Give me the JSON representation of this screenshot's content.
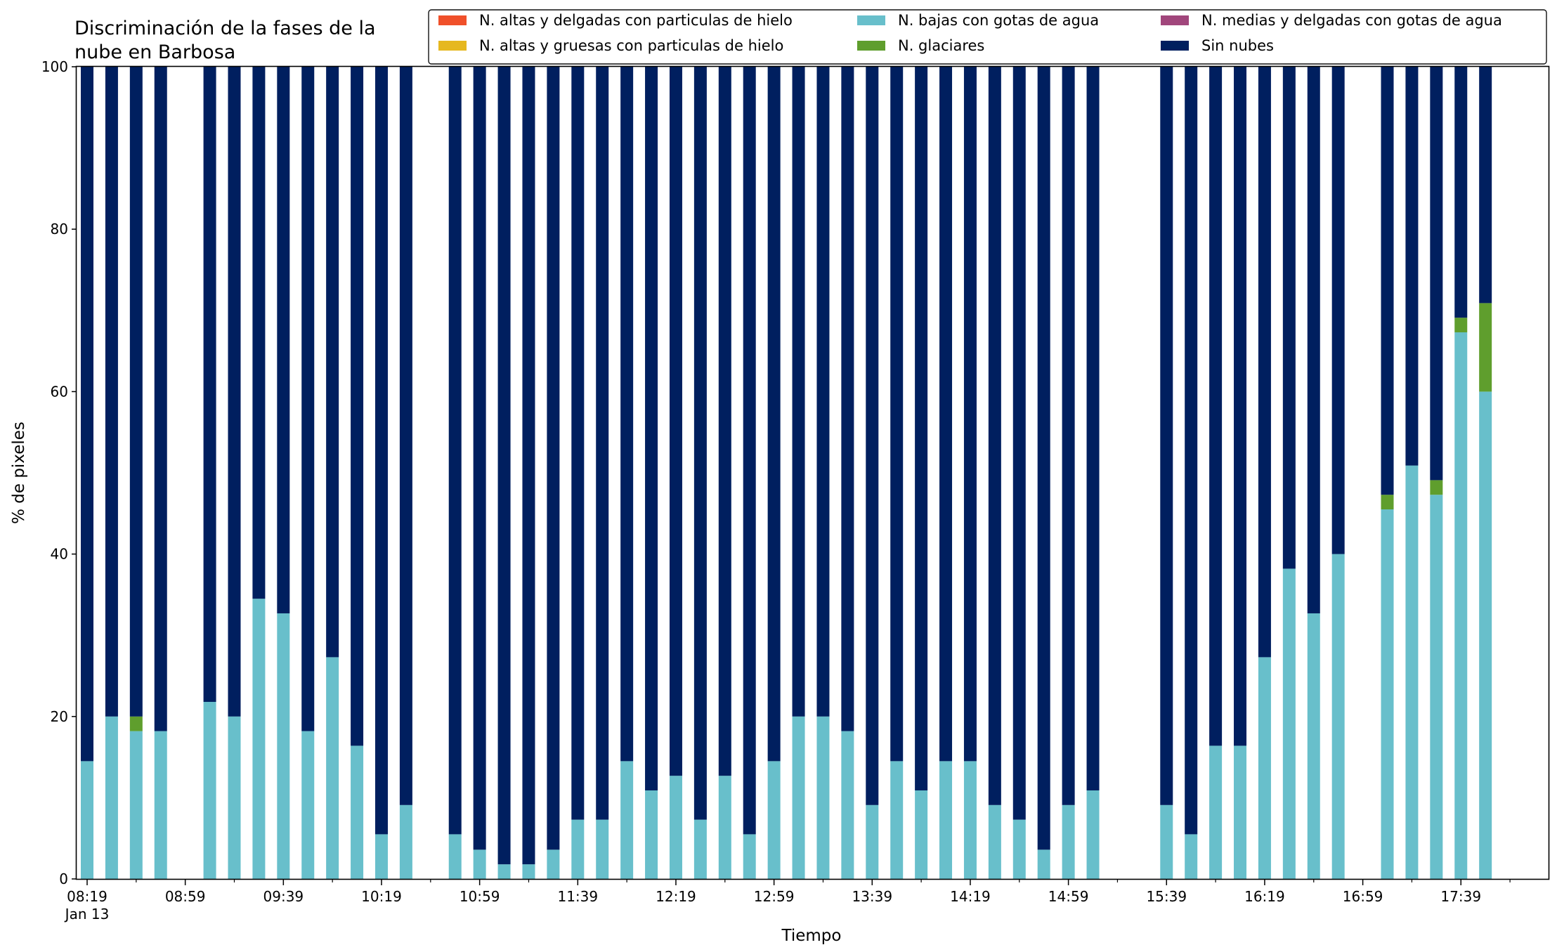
{
  "chart_data": {
    "type": "bar",
    "stacked": true,
    "title_lines": [
      "Discriminación de la fases de la",
      "nube en Barbosa"
    ],
    "xlabel": "Tiempo",
    "ylabel": "% de pixeles",
    "ylim": [
      0,
      100
    ],
    "yticks": [
      "0",
      "20",
      "40",
      "60",
      "80",
      "100"
    ],
    "grid": false,
    "legend_position": "top-right",
    "x_time_range": [
      "08:19",
      "18:09"
    ],
    "interval_minutes": 10,
    "major_ticks": [
      {
        "time": "08:19",
        "label": "08:19",
        "sublabel": "Jan 13"
      },
      {
        "time": "08:59",
        "label": "08:59"
      },
      {
        "time": "09:39",
        "label": "09:39"
      },
      {
        "time": "10:19",
        "label": "10:19"
      },
      {
        "time": "10:59",
        "label": "10:59"
      },
      {
        "time": "11:39",
        "label": "11:39"
      },
      {
        "time": "12:19",
        "label": "12:19"
      },
      {
        "time": "12:59",
        "label": "12:59"
      },
      {
        "time": "13:39",
        "label": "13:39"
      },
      {
        "time": "14:19",
        "label": "14:19"
      },
      {
        "time": "14:59",
        "label": "14:59"
      },
      {
        "time": "15:39",
        "label": "15:39"
      },
      {
        "time": "16:19",
        "label": "16:19"
      },
      {
        "time": "16:59",
        "label": "16:59"
      },
      {
        "time": "17:39",
        "label": "17:39"
      }
    ],
    "legend_layout": [
      [
        "N. altas y delgadas con particulas de hielo",
        "N. altas y gruesas con particulas de hielo"
      ],
      [
        "N. bajas con gotas de agua",
        "N. glaciares"
      ],
      [
        "N. medias y delgadas con gotas de agua",
        "Sin nubes"
      ]
    ],
    "series": [
      {
        "name": "N. altas y delgadas con particulas de hielo",
        "color": "#f0502a",
        "values": []
      },
      {
        "name": "N. altas y gruesas con particulas de hielo",
        "color": "#e6b81f",
        "values": []
      },
      {
        "name": "N. bajas con gotas de agua",
        "color": "#68bfcb",
        "values": []
      },
      {
        "name": "N. glaciares",
        "color": "#5f9e2d",
        "values": []
      },
      {
        "name": "N. medias y delgadas con gotas de agua",
        "color": "#a1467c",
        "values": []
      },
      {
        "name": "Sin nubes",
        "color": "#001f5f",
        "values": []
      }
    ],
    "stack_order": [
      "N. bajas con gotas de agua",
      "N. glaciares",
      "N. altas y delgadas con particulas de hielo",
      "N. altas y gruesas con particulas de hielo",
      "N. medias y delgadas con gotas de agua",
      "Sin nubes"
    ],
    "bars": [
      {
        "time": "08:19",
        "N. bajas con gotas de agua": 14.5,
        "N. glaciares": 0,
        "Sin nubes": 85.5
      },
      {
        "time": "08:29",
        "N. bajas con gotas de agua": 20.0,
        "N. glaciares": 0,
        "Sin nubes": 80.0
      },
      {
        "time": "08:39",
        "N. bajas con gotas de agua": 18.2,
        "N. glaciares": 1.8,
        "Sin nubes": 80.0
      },
      {
        "time": "08:49",
        "N. bajas con gotas de agua": 18.2,
        "N. glaciares": 0,
        "Sin nubes": 81.8
      },
      {
        "time": "09:09",
        "N. bajas con gotas de agua": 21.8,
        "N. glaciares": 0,
        "Sin nubes": 78.2
      },
      {
        "time": "09:19",
        "N. bajas con gotas de agua": 20.0,
        "N. glaciares": 0,
        "Sin nubes": 80.0
      },
      {
        "time": "09:29",
        "N. bajas con gotas de agua": 34.5,
        "N. glaciares": 0,
        "Sin nubes": 65.5
      },
      {
        "time": "09:39",
        "N. bajas con gotas de agua": 32.7,
        "N. glaciares": 0,
        "Sin nubes": 67.3
      },
      {
        "time": "09:49",
        "N. bajas con gotas de agua": 18.2,
        "N. glaciares": 0,
        "Sin nubes": 81.8
      },
      {
        "time": "09:59",
        "N. bajas con gotas de agua": 27.3,
        "N. glaciares": 0,
        "Sin nubes": 72.7
      },
      {
        "time": "10:09",
        "N. bajas con gotas de agua": 16.4,
        "N. glaciares": 0,
        "Sin nubes": 83.6
      },
      {
        "time": "10:19",
        "N. bajas con gotas de agua": 5.5,
        "N. glaciares": 0,
        "Sin nubes": 94.5
      },
      {
        "time": "10:29",
        "N. bajas con gotas de agua": 9.1,
        "N. glaciares": 0,
        "Sin nubes": 90.9
      },
      {
        "time": "10:49",
        "N. bajas con gotas de agua": 5.5,
        "N. glaciares": 0,
        "Sin nubes": 94.5
      },
      {
        "time": "10:59",
        "N. bajas con gotas de agua": 3.6,
        "N. glaciares": 0,
        "Sin nubes": 96.4
      },
      {
        "time": "11:09",
        "N. bajas con gotas de agua": 1.8,
        "N. glaciares": 0,
        "Sin nubes": 98.2
      },
      {
        "time": "11:19",
        "N. bajas con gotas de agua": 1.8,
        "N. glaciares": 0,
        "Sin nubes": 98.2
      },
      {
        "time": "11:29",
        "N. bajas con gotas de agua": 3.6,
        "N. glaciares": 0,
        "Sin nubes": 96.4
      },
      {
        "time": "11:39",
        "N. bajas con gotas de agua": 7.3,
        "N. glaciares": 0,
        "Sin nubes": 92.7
      },
      {
        "time": "11:49",
        "N. bajas con gotas de agua": 7.3,
        "N. glaciares": 0,
        "Sin nubes": 92.7
      },
      {
        "time": "11:59",
        "N. bajas con gotas de agua": 14.5,
        "N. glaciares": 0,
        "Sin nubes": 85.5
      },
      {
        "time": "12:09",
        "N. bajas con gotas de agua": 10.9,
        "N. glaciares": 0,
        "Sin nubes": 89.1
      },
      {
        "time": "12:19",
        "N. bajas con gotas de agua": 12.7,
        "N. glaciares": 0,
        "Sin nubes": 87.3
      },
      {
        "time": "12:29",
        "N. bajas con gotas de agua": 7.3,
        "N. glaciares": 0,
        "Sin nubes": 92.7
      },
      {
        "time": "12:39",
        "N. bajas con gotas de agua": 12.7,
        "N. glaciares": 0,
        "Sin nubes": 87.3
      },
      {
        "time": "12:49",
        "N. bajas con gotas de agua": 5.5,
        "N. glaciares": 0,
        "Sin nubes": 94.5
      },
      {
        "time": "12:59",
        "N. bajas con gotas de agua": 14.5,
        "N. glaciares": 0,
        "Sin nubes": 85.5
      },
      {
        "time": "13:09",
        "N. bajas con gotas de agua": 20.0,
        "N. glaciares": 0,
        "Sin nubes": 80.0
      },
      {
        "time": "13:19",
        "N. bajas con gotas de agua": 20.0,
        "N. glaciares": 0,
        "Sin nubes": 80.0
      },
      {
        "time": "13:29",
        "N. bajas con gotas de agua": 18.2,
        "N. glaciares": 0,
        "Sin nubes": 81.8
      },
      {
        "time": "13:39",
        "N. bajas con gotas de agua": 9.1,
        "N. glaciares": 0,
        "Sin nubes": 90.9
      },
      {
        "time": "13:49",
        "N. bajas con gotas de agua": 14.5,
        "N. glaciares": 0,
        "Sin nubes": 85.5
      },
      {
        "time": "13:59",
        "N. bajas con gotas de agua": 10.9,
        "N. glaciares": 0,
        "Sin nubes": 89.1
      },
      {
        "time": "14:09",
        "N. bajas con gotas de agua": 14.5,
        "N. glaciares": 0,
        "Sin nubes": 85.5
      },
      {
        "time": "14:19",
        "N. bajas con gotas de agua": 14.5,
        "N. glaciares": 0,
        "Sin nubes": 85.5
      },
      {
        "time": "14:29",
        "N. bajas con gotas de agua": 9.1,
        "N. glaciares": 0,
        "Sin nubes": 90.9
      },
      {
        "time": "14:39",
        "N. bajas con gotas de agua": 7.3,
        "N. glaciares": 0,
        "Sin nubes": 92.7
      },
      {
        "time": "14:49",
        "N. bajas con gotas de agua": 3.6,
        "N. glaciares": 0,
        "Sin nubes": 96.4
      },
      {
        "time": "14:59",
        "N. bajas con gotas de agua": 9.1,
        "N. glaciares": 0,
        "Sin nubes": 90.9
      },
      {
        "time": "15:09",
        "N. bajas con gotas de agua": 10.9,
        "N. glaciares": 0,
        "Sin nubes": 89.1
      },
      {
        "time": "15:39",
        "N. bajas con gotas de agua": 9.1,
        "N. glaciares": 0,
        "Sin nubes": 90.9
      },
      {
        "time": "15:49",
        "N. bajas con gotas de agua": 5.5,
        "N. glaciares": 0,
        "Sin nubes": 94.5
      },
      {
        "time": "15:59",
        "N. bajas con gotas de agua": 16.4,
        "N. glaciares": 0,
        "Sin nubes": 83.6
      },
      {
        "time": "16:09",
        "N. bajas con gotas de agua": 16.4,
        "N. glaciares": 0,
        "Sin nubes": 83.6
      },
      {
        "time": "16:19",
        "N. bajas con gotas de agua": 27.3,
        "N. glaciares": 0,
        "Sin nubes": 72.7
      },
      {
        "time": "16:29",
        "N. bajas con gotas de agua": 38.2,
        "N. glaciares": 0,
        "Sin nubes": 61.8
      },
      {
        "time": "16:39",
        "N. bajas con gotas de agua": 32.7,
        "N. glaciares": 0,
        "Sin nubes": 67.3
      },
      {
        "time": "16:49",
        "N. bajas con gotas de agua": 40.0,
        "N. glaciares": 0,
        "Sin nubes": 60.0
      },
      {
        "time": "17:09",
        "N. bajas con gotas de agua": 45.5,
        "N. glaciares": 1.8,
        "Sin nubes": 52.7
      },
      {
        "time": "17:19",
        "N. bajas con gotas de agua": 50.9,
        "N. glaciares": 0,
        "Sin nubes": 49.1
      },
      {
        "time": "17:29",
        "N. bajas con gotas de agua": 47.3,
        "N. glaciares": 1.8,
        "Sin nubes": 50.9
      },
      {
        "time": "17:39",
        "N. bajas con gotas de agua": 67.3,
        "N. glaciares": 1.8,
        "Sin nubes": 30.9
      },
      {
        "time": "17:49",
        "N. bajas con gotas de agua": 60.0,
        "N. glaciares": 10.9,
        "Sin nubes": 29.1
      }
    ]
  }
}
